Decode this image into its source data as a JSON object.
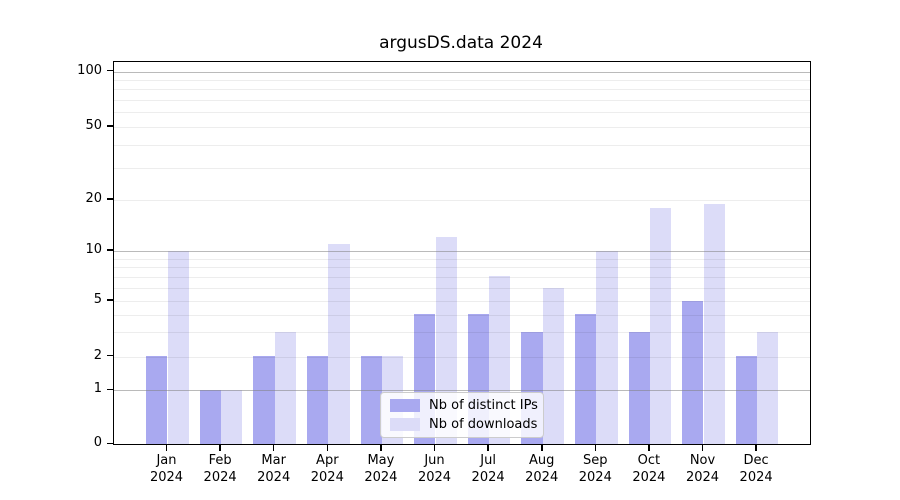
{
  "title": "argusDS.data 2024",
  "colors": {
    "ips": "#a9a9f0",
    "downloads": "#dcdcf8",
    "spine": "#000000",
    "major_grid": "#b0b0b0",
    "minor_grid": "#ececec"
  },
  "legend": {
    "items": [
      {
        "label": "Nb of distinct IPs",
        "series": "ips"
      },
      {
        "label": "Nb of downloads",
        "series": "downloads"
      }
    ],
    "position": "lower center"
  },
  "y_axis": {
    "tick_labels": [
      "100",
      "50",
      "20",
      "10",
      "5",
      "2",
      "1",
      "0"
    ],
    "tick_values": [
      100,
      50,
      20,
      10,
      5,
      2,
      1,
      0
    ],
    "major_gridlines": [
      1,
      10,
      100
    ],
    "minor_gridlines": [
      2,
      3,
      4,
      5,
      6,
      7,
      8,
      9,
      20,
      30,
      40,
      50,
      60,
      70,
      80,
      90
    ]
  },
  "x_axis": {
    "months": [
      "Jan",
      "Feb",
      "Mar",
      "Apr",
      "May",
      "Jun",
      "Jul",
      "Aug",
      "Sep",
      "Oct",
      "Nov",
      "Dec"
    ],
    "year": "2024"
  },
  "chart_data": {
    "type": "bar",
    "title": "argusDS.data 2024",
    "xlabel": "",
    "ylabel": "",
    "yscale": "symlog",
    "ylim": [
      0,
      115
    ],
    "grid": true,
    "legend_position": "lower center",
    "categories": [
      "Jan 2024",
      "Feb 2024",
      "Mar 2024",
      "Apr 2024",
      "May 2024",
      "Jun 2024",
      "Jul 2024",
      "Aug 2024",
      "Sep 2024",
      "Oct 2024",
      "Nov 2024",
      "Dec 2024"
    ],
    "series": [
      {
        "name": "Nb of distinct IPs",
        "color": "#a9a9f0",
        "values": [
          2,
          1,
          2,
          2,
          2,
          4,
          4,
          3,
          4,
          3,
          5,
          2
        ]
      },
      {
        "name": "Nb of downloads",
        "color": "#dcdcf8",
        "values": [
          10,
          1,
          3,
          11,
          2,
          12,
          7,
          6,
          10,
          18,
          19,
          3
        ]
      }
    ]
  }
}
